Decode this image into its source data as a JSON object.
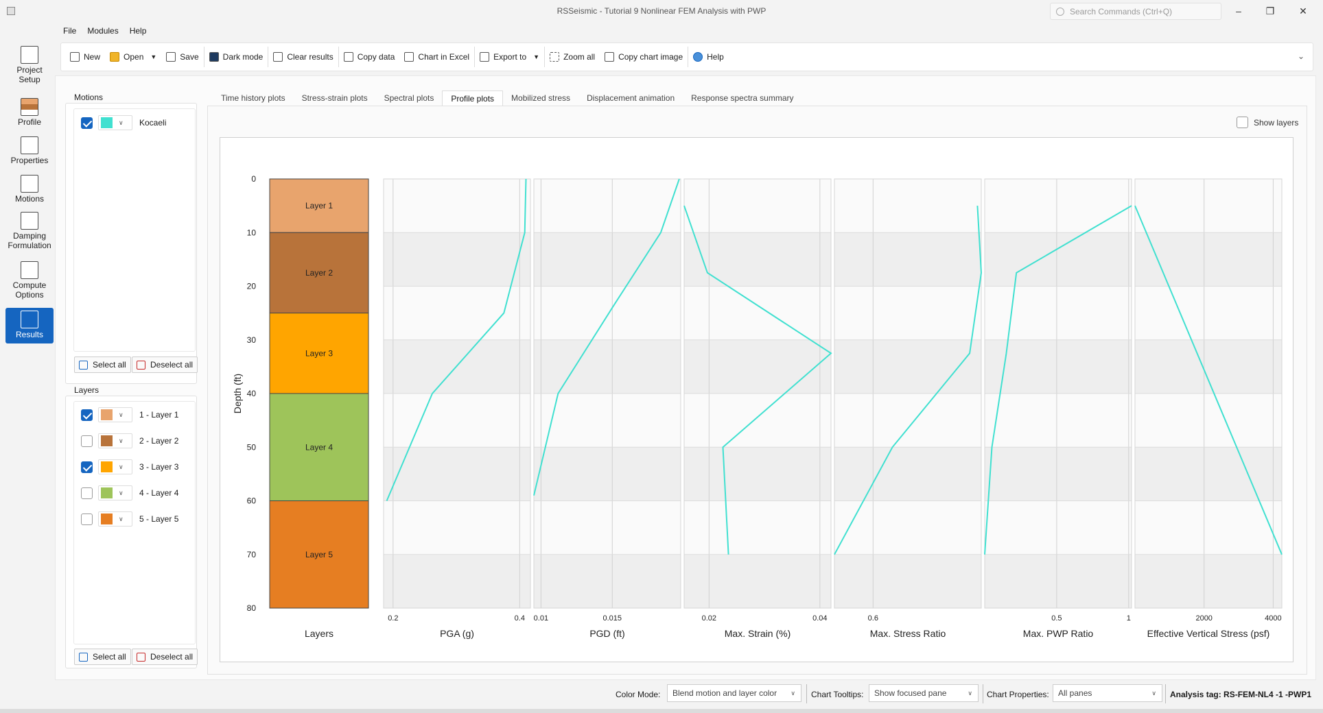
{
  "window": {
    "title": "RSSeismic - Tutorial 9 Nonlinear FEM Analysis with PWP",
    "search_placeholder": "Search Commands (Ctrl+Q)",
    "minimize": "–",
    "maximize": "❐",
    "close": "✕"
  },
  "menu": [
    "File",
    "Modules",
    "Help"
  ],
  "nav": [
    {
      "label": "Project Setup",
      "icon": "project-setup-icon"
    },
    {
      "label": "Profile",
      "icon": "profile-icon"
    },
    {
      "label": "Properties",
      "icon": "properties-icon"
    },
    {
      "label": "Motions",
      "icon": "motions-icon"
    },
    {
      "label": "Damping Formulation",
      "icon": "damping-icon"
    },
    {
      "label": "Compute Options",
      "icon": "compute-icon"
    },
    {
      "label": "Results",
      "icon": "results-icon"
    }
  ],
  "toolbar": {
    "new": "New",
    "open": "Open",
    "save": "Save",
    "dark_mode": "Dark mode",
    "clear_results": "Clear results",
    "copy_data": "Copy data",
    "chart_in_excel": "Chart in Excel",
    "export_to": "Export to",
    "zoom_all": "Zoom all",
    "copy_chart_image": "Copy chart image",
    "help": "Help"
  },
  "motions": {
    "title": "Motions",
    "items": [
      {
        "label": "Kocaeli",
        "checked": true,
        "color": "#40e0d0"
      }
    ],
    "select_all": "Select all",
    "deselect_all": "Deselect all"
  },
  "layers": {
    "title": "Layers",
    "items": [
      {
        "label": "1 - Layer 1",
        "checked": true,
        "color": "#e8a46d"
      },
      {
        "label": "2 - Layer 2",
        "checked": false,
        "color": "#b8733a"
      },
      {
        "label": "3 - Layer 3",
        "checked": true,
        "color": "#ffa500"
      },
      {
        "label": "4 - Layer 4",
        "checked": false,
        "color": "#9ec45a"
      },
      {
        "label": "5 - Layer 5",
        "checked": false,
        "color": "#e67e22"
      }
    ],
    "select_all": "Select all",
    "deselect_all": "Deselect all"
  },
  "tabs": [
    {
      "label": "Time history plots",
      "active": false
    },
    {
      "label": "Stress-strain plots",
      "active": false
    },
    {
      "label": "Spectral plots",
      "active": false
    },
    {
      "label": "Profile plots",
      "active": true
    },
    {
      "label": "Mobilized stress",
      "active": false
    },
    {
      "label": "Displacement animation",
      "active": false
    },
    {
      "label": "Response spectra summary",
      "active": false
    }
  ],
  "show_layers": "Show layers",
  "chart_data": {
    "type": "line",
    "ylabel": "Depth (ft)",
    "ylim": [
      0,
      80
    ],
    "yticks": [
      0,
      10,
      20,
      30,
      40,
      50,
      60,
      70,
      80
    ],
    "line_color": "#40e0d0",
    "layer_column": {
      "xlabel": "Layers",
      "layers": [
        {
          "name": "Layer 1",
          "top": 0,
          "bottom": 10,
          "color": "#e8a46d"
        },
        {
          "name": "Layer 2",
          "top": 10,
          "bottom": 25,
          "color": "#b8733a"
        },
        {
          "name": "Layer 3",
          "top": 25,
          "bottom": 40,
          "color": "#ffa500"
        },
        {
          "name": "Layer 4",
          "top": 40,
          "bottom": 60,
          "color": "#9ec45a"
        },
        {
          "name": "Layer 5",
          "top": 60,
          "bottom": 80,
          "color": "#e67e22"
        }
      ]
    },
    "panels": [
      {
        "xlabel": "PGA (g)",
        "xlim": [
          0.185,
          0.417
        ],
        "xticks": [
          {
            "v": 0.2,
            "label": "0.2"
          },
          {
            "v": 0.4,
            "label": "0.4"
          }
        ],
        "points": [
          [
            0.41,
            0
          ],
          [
            0.408,
            10
          ],
          [
            0.375,
            25
          ],
          [
            0.262,
            40
          ],
          [
            0.19,
            60
          ]
        ]
      },
      {
        "xlabel": "PGD (ft)",
        "xlim": [
          0.0095,
          0.0198
        ],
        "xticks": [
          {
            "v": 0.01,
            "label": "0.01"
          },
          {
            "v": 0.015,
            "label": "0.015"
          }
        ],
        "points": [
          [
            0.0197,
            0
          ],
          [
            0.0184,
            10
          ],
          [
            0.015,
            24
          ],
          [
            0.0112,
            40
          ],
          [
            0.0095,
            59
          ]
        ]
      },
      {
        "xlabel": "Max. Strain (%)",
        "xlim": [
          0.0155,
          0.042
        ],
        "xticks": [
          {
            "v": 0.02,
            "label": "0.02"
          },
          {
            "v": 0.04,
            "label": "0.04"
          }
        ],
        "points": [
          [
            0.0155,
            5
          ],
          [
            0.0197,
            17.5
          ],
          [
            0.042,
            32.5
          ],
          [
            0.0225,
            50
          ],
          [
            0.0235,
            70
          ]
        ]
      },
      {
        "xlabel": "Max. Stress Ratio",
        "xlim": [
          0.5,
          0.88
        ],
        "xticks": [
          {
            "v": 0.6,
            "label": "0.6"
          }
        ],
        "points": [
          [
            0.87,
            5
          ],
          [
            0.88,
            17.5
          ],
          [
            0.85,
            32.5
          ],
          [
            0.65,
            50
          ],
          [
            0.5,
            70
          ]
        ]
      },
      {
        "xlabel": "Max. PWP Ratio",
        "xlim": [
          0,
          1.02
        ],
        "xticks": [
          {
            "v": 0.5,
            "label": "0.5"
          },
          {
            "v": 1,
            "label": "1"
          }
        ],
        "points": [
          [
            1.02,
            5
          ],
          [
            0.22,
            17.5
          ],
          [
            0.15,
            32.5
          ],
          [
            0.05,
            50
          ],
          [
            0,
            70
          ]
        ]
      },
      {
        "xlabel": "Effective Vertical Stress (psf)",
        "xlim": [
          0,
          4250
        ],
        "xticks": [
          {
            "v": 2000,
            "label": "2000"
          },
          {
            "v": 4000,
            "label": "4000"
          }
        ],
        "points": [
          [
            0,
            5
          ],
          [
            4250,
            70
          ]
        ]
      }
    ]
  },
  "status": {
    "color_mode_label": "Color Mode:",
    "color_mode_value": "Blend motion and layer color",
    "tooltips_label": "Chart Tooltips:",
    "tooltips_value": "Show focused pane",
    "properties_label": "Chart Properties:",
    "properties_value": "All panes",
    "analysis_tag": "Analysis tag: RS-FEM-NL4 -1 -PWP1"
  }
}
